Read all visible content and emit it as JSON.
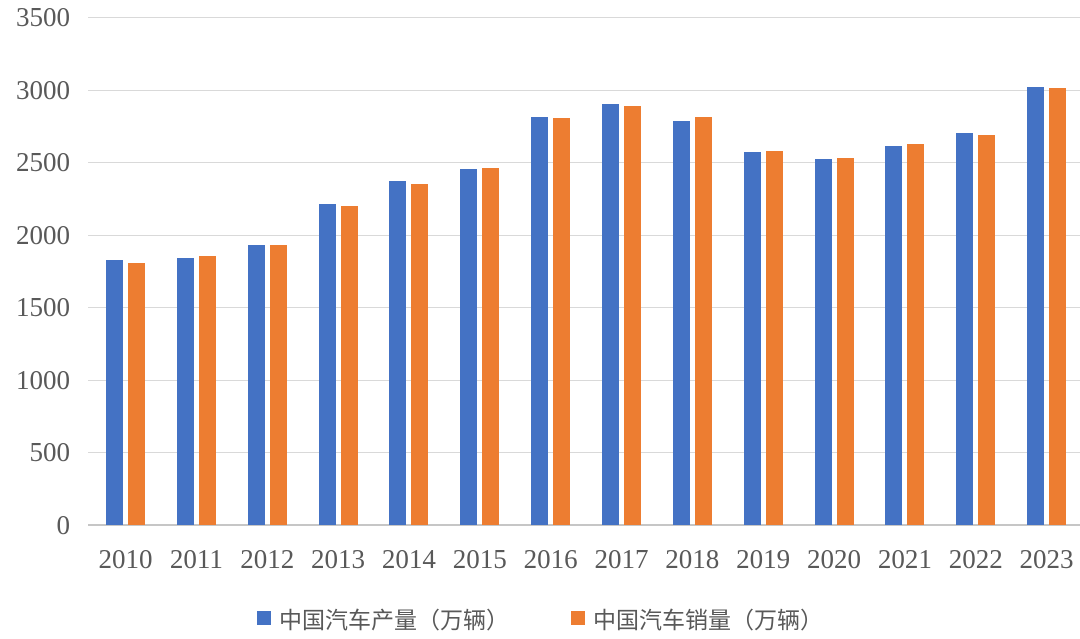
{
  "chart_data": {
    "type": "bar",
    "title": "",
    "xlabel": "",
    "ylabel": "",
    "categories": [
      "2010",
      "2011",
      "2012",
      "2013",
      "2014",
      "2015",
      "2016",
      "2017",
      "2018",
      "2019",
      "2020",
      "2021",
      "2022",
      "2023"
    ],
    "series": [
      {
        "name": "中国汽车产量（万辆）",
        "color": "#4472C4",
        "values": [
          1826,
          1842,
          1927,
          2212,
          2372,
          2450,
          2812,
          2902,
          2781,
          2572,
          2523,
          2608,
          2702,
          3016
        ]
      },
      {
        "name": "中国汽车销量（万辆）",
        "color": "#ED7D31",
        "values": [
          1806,
          1851,
          1931,
          2198,
          2349,
          2460,
          2803,
          2888,
          2808,
          2577,
          2531,
          2628,
          2686,
          3009
        ]
      }
    ],
    "ylim": [
      0,
      3500
    ],
    "ytick_step": 500,
    "y_ticks": [
      "0",
      "500",
      "1000",
      "1500",
      "2000",
      "2500",
      "3000",
      "3500"
    ],
    "grid": true,
    "legend_position": "bottom",
    "gridline_color": "#d9d9d9",
    "axis_line_color": "#c6c6c6",
    "tick_label_color": "#595959",
    "background_color": "#ffffff"
  }
}
